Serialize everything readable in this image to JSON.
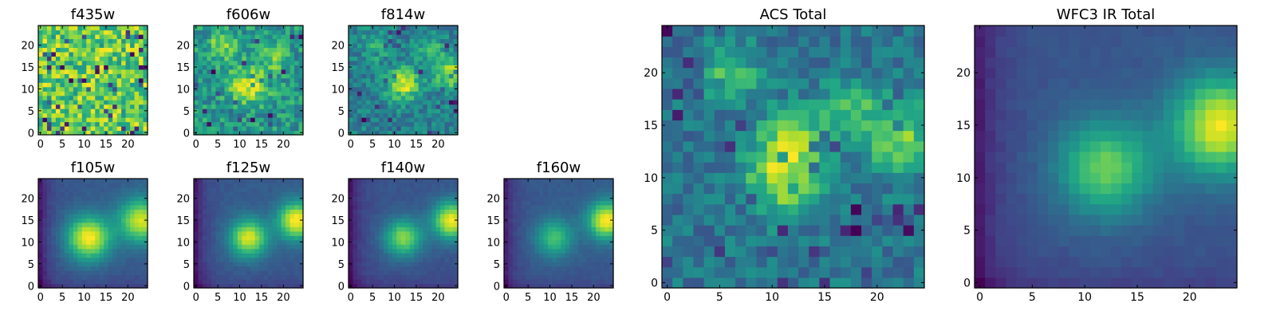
{
  "chart_data": [
    {
      "type": "heatmap",
      "title": "f435w",
      "grid_size": 25,
      "xlim": [
        0,
        24
      ],
      "ylim": [
        0,
        24
      ],
      "xticks": [
        0,
        5,
        10,
        15,
        20
      ],
      "yticks": [
        0,
        5,
        10,
        15,
        20
      ],
      "description_of_values": "noisy, roughly uniform",
      "style": "noise",
      "peaks": [],
      "colormap": "viridis",
      "grid": false
    },
    {
      "type": "heatmap",
      "title": "f606w",
      "grid_size": 25,
      "xlim": [
        0,
        24
      ],
      "ylim": [
        0,
        24
      ],
      "xticks": [
        0,
        5,
        10,
        15,
        20
      ],
      "yticks": [
        0,
        5,
        10,
        15,
        20
      ],
      "style": "noisy",
      "peaks": [
        {
          "x": 12,
          "y": 11,
          "amp": 0.3,
          "sigma": 3
        },
        {
          "x": 6,
          "y": 20,
          "amp": 0.25,
          "sigma": 2
        },
        {
          "x": 18,
          "y": 17,
          "amp": 0.2,
          "sigma": 2
        }
      ],
      "colormap": "viridis",
      "grid": false
    },
    {
      "type": "heatmap",
      "title": "f814w",
      "grid_size": 25,
      "xlim": [
        0,
        24
      ],
      "ylim": [
        0,
        24
      ],
      "xticks": [
        0,
        5,
        10,
        15,
        20
      ],
      "yticks": [
        0,
        5,
        10,
        15,
        20
      ],
      "style": "noisy",
      "peaks": [
        {
          "x": 12,
          "y": 11,
          "amp": 0.5,
          "sigma": 2.5
        },
        {
          "x": 23,
          "y": 14,
          "amp": 0.45,
          "sigma": 2.5
        },
        {
          "x": 6,
          "y": 20,
          "amp": 0.25,
          "sigma": 2
        },
        {
          "x": 18,
          "y": 19,
          "amp": 0.25,
          "sigma": 2
        }
      ],
      "colormap": "viridis",
      "grid": false
    },
    {
      "type": "heatmap",
      "title": "f105w",
      "grid_size": 25,
      "xlim": [
        0,
        24
      ],
      "ylim": [
        0,
        24
      ],
      "xticks": [
        0,
        5,
        10,
        15,
        20
      ],
      "yticks": [
        0,
        5,
        10,
        15,
        20
      ],
      "style": "smooth",
      "peaks": [
        {
          "x": 11,
          "y": 11,
          "amp": 0.6,
          "sigma": 3.5
        },
        {
          "x": 23,
          "y": 15,
          "amp": 0.55,
          "sigma": 3.5
        }
      ],
      "colormap": "viridis",
      "grid": false
    },
    {
      "type": "heatmap",
      "title": "f125w",
      "grid_size": 25,
      "xlim": [
        0,
        24
      ],
      "ylim": [
        0,
        24
      ],
      "xticks": [
        0,
        5,
        10,
        15,
        20
      ],
      "yticks": [
        0,
        5,
        10,
        15,
        20
      ],
      "style": "smooth",
      "peaks": [
        {
          "x": 12,
          "y": 11,
          "amp": 0.55,
          "sigma": 3
        },
        {
          "x": 23,
          "y": 15,
          "amp": 0.6,
          "sigma": 3
        }
      ],
      "colormap": "viridis",
      "grid": false
    },
    {
      "type": "heatmap",
      "title": "f140w",
      "grid_size": 25,
      "xlim": [
        0,
        24
      ],
      "ylim": [
        0,
        24
      ],
      "xticks": [
        0,
        5,
        10,
        15,
        20
      ],
      "yticks": [
        0,
        5,
        10,
        15,
        20
      ],
      "style": "smooth",
      "peaks": [
        {
          "x": 12,
          "y": 11,
          "amp": 0.5,
          "sigma": 3
        },
        {
          "x": 23,
          "y": 15,
          "amp": 0.65,
          "sigma": 3
        }
      ],
      "colormap": "viridis",
      "grid": false
    },
    {
      "type": "heatmap",
      "title": "f160w",
      "grid_size": 25,
      "xlim": [
        0,
        24
      ],
      "ylim": [
        0,
        24
      ],
      "xticks": [
        0,
        5,
        10,
        15,
        20
      ],
      "yticks": [
        0,
        5,
        10,
        15,
        20
      ],
      "style": "smooth",
      "peaks": [
        {
          "x": 11,
          "y": 11,
          "amp": 0.4,
          "sigma": 3
        },
        {
          "x": 23,
          "y": 15,
          "amp": 0.7,
          "sigma": 3
        }
      ],
      "colormap": "viridis",
      "grid": false
    },
    {
      "type": "heatmap",
      "title": "ACS Total",
      "grid_size": 25,
      "xlim": [
        0,
        24
      ],
      "ylim": [
        0,
        24
      ],
      "xticks": [
        0,
        5,
        10,
        15,
        20
      ],
      "yticks": [
        0,
        5,
        10,
        15,
        20
      ],
      "style": "noisy",
      "peaks": [
        {
          "x": 11,
          "y": 10,
          "amp": 0.55,
          "sigma": 2.5
        },
        {
          "x": 12,
          "y": 14,
          "amp": 0.4,
          "sigma": 2
        },
        {
          "x": 22,
          "y": 14,
          "amp": 0.45,
          "sigma": 2.5
        },
        {
          "x": 6,
          "y": 20,
          "amp": 0.35,
          "sigma": 2
        },
        {
          "x": 17,
          "y": 17,
          "amp": 0.35,
          "sigma": 1.8
        }
      ],
      "colormap": "viridis",
      "grid": false
    },
    {
      "type": "heatmap",
      "title": "WFC3 IR Total",
      "grid_size": 25,
      "xlim": [
        0,
        24
      ],
      "ylim": [
        0,
        24
      ],
      "xticks": [
        0,
        5,
        10,
        15,
        20
      ],
      "yticks": [
        0,
        5,
        10,
        15,
        20
      ],
      "style": "smooth",
      "peaks": [
        {
          "x": 12,
          "y": 11,
          "amp": 0.5,
          "sigma": 3.2
        },
        {
          "x": 23,
          "y": 15,
          "amp": 0.7,
          "sigma": 3.2
        }
      ],
      "colormap": "viridis",
      "grid": false
    }
  ]
}
